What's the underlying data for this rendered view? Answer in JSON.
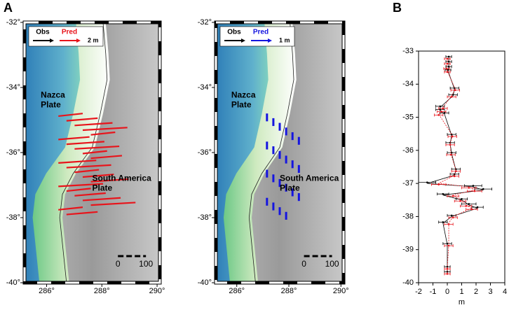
{
  "chart_data": [
    {
      "type": "map",
      "panel_label": "A",
      "xlim": [
        285.2,
        290.1
      ],
      "ylim": [
        -40,
        -32
      ],
      "xticks": [
        {
          "value": 286,
          "label": "286°"
        },
        {
          "value": 288,
          "label": "288°"
        },
        {
          "value": 290,
          "label": "290°"
        }
      ],
      "yticks": [
        {
          "value": -32,
          "label": "-32°"
        },
        {
          "value": -34,
          "label": "-34°"
        },
        {
          "value": -36,
          "label": "-36°"
        },
        {
          "value": -38,
          "label": "-38°"
        },
        {
          "value": -40,
          "label": "-40°"
        }
      ],
      "legend": [
        {
          "name": "Obs",
          "color": "#000000"
        },
        {
          "name": "Pred",
          "color": "#e8141b"
        }
      ],
      "scale_label": "2 m",
      "annotations": [
        [
          "Nazca",
          "Plate"
        ],
        [
          "South America",
          "Plate"
        ]
      ],
      "scale_bar": [
        0,
        100
      ]
    },
    {
      "type": "map",
      "xlim": [
        285.2,
        290.1
      ],
      "ylim": [
        -40,
        -32
      ],
      "xticks": [
        {
          "value": 286,
          "label": "286°"
        },
        {
          "value": 288,
          "label": "288°"
        },
        {
          "value": 290,
          "label": "290°"
        }
      ],
      "yticks": [
        {
          "value": -32,
          "label": "-32°"
        },
        {
          "value": -34,
          "label": "-34°"
        },
        {
          "value": -36,
          "label": "-36°"
        },
        {
          "value": -38,
          "label": "-38°"
        },
        {
          "value": -40,
          "label": "-40°"
        }
      ],
      "legend": [
        {
          "name": "Obs",
          "color": "#000000"
        },
        {
          "name": "Pred",
          "color": "#1515e0"
        }
      ],
      "scale_label": "1 m",
      "annotations": [
        [
          "Nazca",
          "Plate"
        ],
        [
          "South America",
          "Plate"
        ]
      ],
      "scale_bar": [
        0,
        100
      ]
    },
    {
      "type": "profile",
      "panel_label": "B",
      "xlabel": "m",
      "xlim": [
        -2,
        4
      ],
      "ylim": [
        -40,
        -33
      ],
      "xticks": [
        -2,
        -1,
        0,
        1,
        2,
        3,
        4
      ],
      "yticks": [
        -40,
        -39,
        -38,
        -37,
        -36,
        -35,
        -34,
        -33
      ],
      "y": [
        -33.2,
        -33.35,
        -33.5,
        -33.6,
        -34.15,
        -34.35,
        -34.7,
        -34.8,
        -34.9,
        -35.55,
        -35.8,
        -36.1,
        -36.6,
        -36.75,
        -37.0,
        -37.1,
        -37.2,
        -37.35,
        -37.5,
        -37.65,
        -37.75,
        -38.0,
        -38.2,
        -38.85,
        -39.55,
        -39.7
      ],
      "series": [
        {
          "color": "#000000",
          "values": [
            0.1,
            0.1,
            0.1,
            0.05,
            0.5,
            0.4,
            -0.5,
            -0.5,
            -0.2,
            0.3,
            0.2,
            0.3,
            0.6,
            0.5,
            -1.4,
            1.8,
            2.5,
            -0.3,
            1.0,
            1.5,
            2.1,
            0.3,
            -0.3,
            0,
            0,
            0
          ],
          "errors": [
            0.2,
            0.2,
            0.2,
            0.2,
            0.3,
            0.3,
            0.3,
            0.3,
            0.3,
            0.3,
            0.3,
            0.3,
            0.3,
            0.3,
            0.6,
            0.6,
            0.6,
            0.4,
            0.4,
            0.5,
            0.4,
            0.3,
            0.3,
            0.3,
            0.2,
            0.2
          ]
        },
        {
          "color": "#e8141b",
          "values": [
            0,
            0,
            -0.05,
            0,
            0.55,
            0.3,
            -0.3,
            -0.4,
            -0.6,
            0.35,
            0.2,
            0.25,
            0.6,
            0.5,
            -0.6,
            1.5,
            1.9,
            0.4,
            0.9,
            1.3,
            1.7,
            0.4,
            0.1,
            0.1,
            0,
            0
          ],
          "errors": [
            0.2,
            0.2,
            0.2,
            0.2,
            0.3,
            0.3,
            0.3,
            0.3,
            0.3,
            0.3,
            0.3,
            0.3,
            0.3,
            0.3,
            0.5,
            0.5,
            0.5,
            0.4,
            0.4,
            0.4,
            0.4,
            0.3,
            0.3,
            0.3,
            0.2,
            0.2
          ]
        }
      ]
    }
  ]
}
